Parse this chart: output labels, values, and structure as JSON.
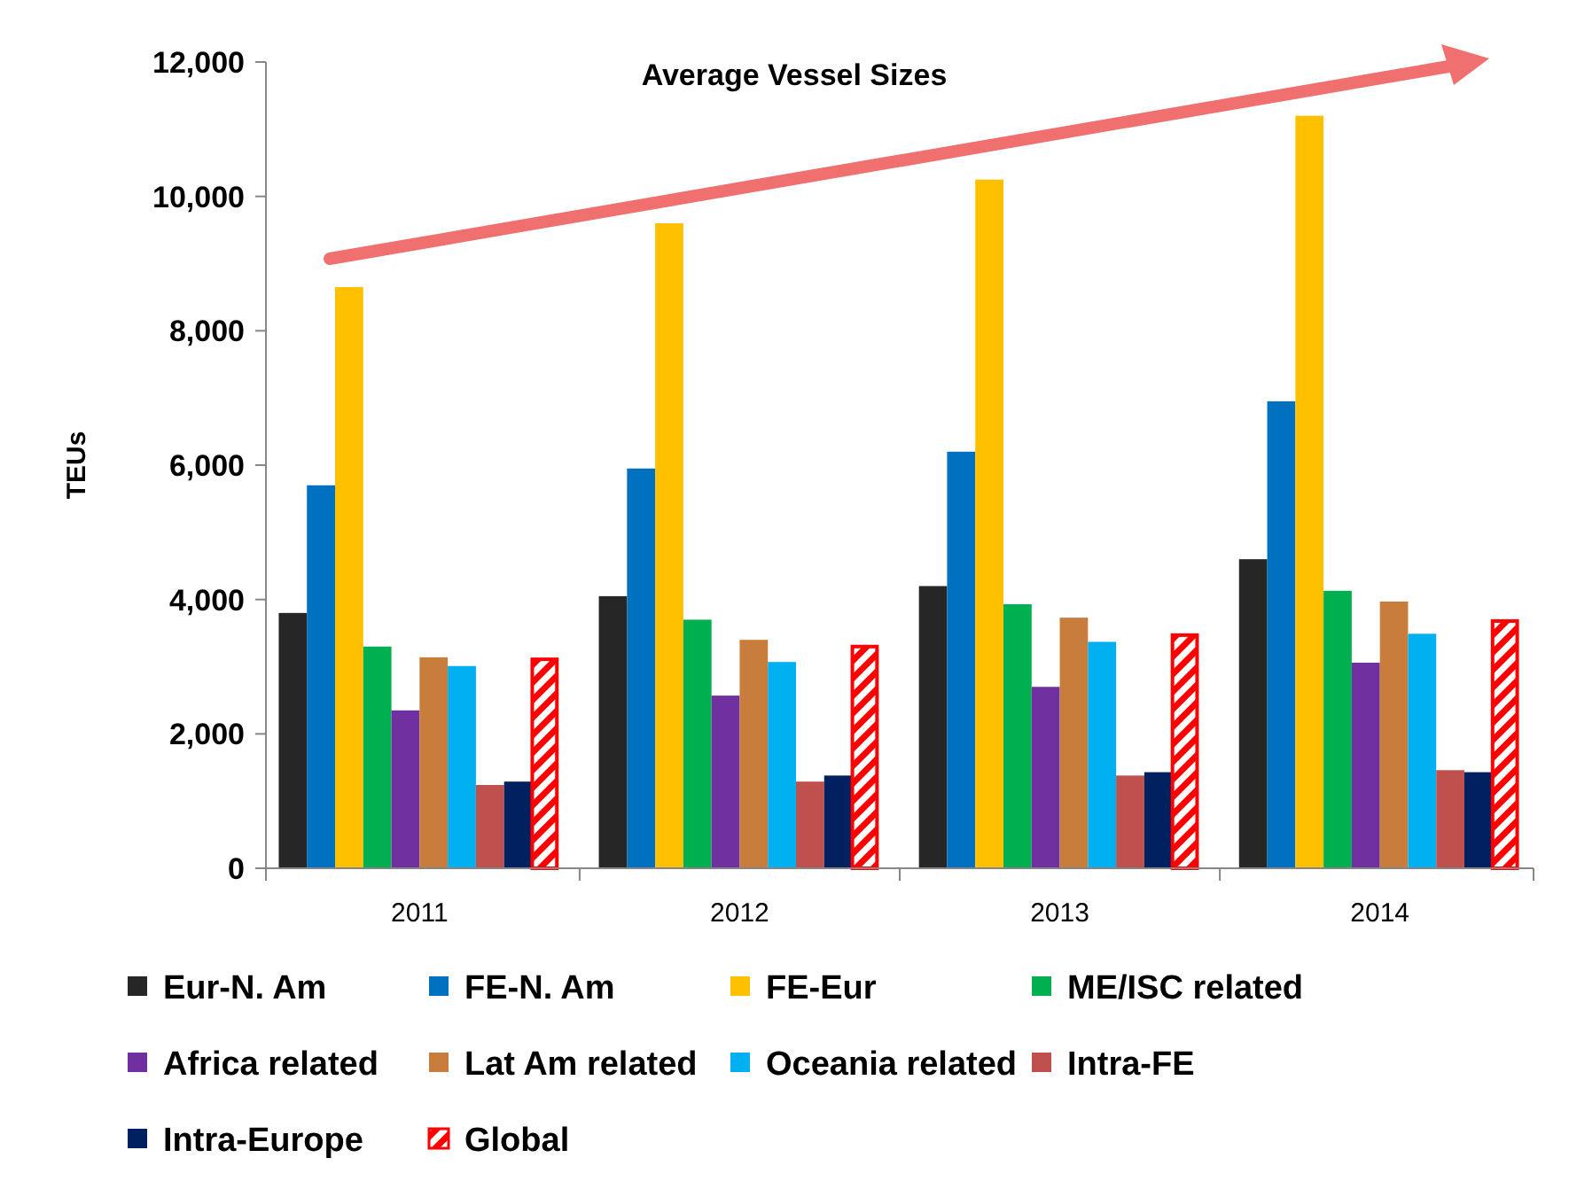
{
  "chart_data": {
    "type": "bar",
    "title": "Average Vessel Sizes",
    "ylabel": "TEUs",
    "categories": [
      "2011",
      "2012",
      "2013",
      "2014"
    ],
    "ylim": [
      0,
      12000
    ],
    "yticks": [
      {
        "value": 0,
        "label": "0"
      },
      {
        "value": 2000,
        "label": "2,000"
      },
      {
        "value": 4000,
        "label": "4,000"
      },
      {
        "value": 6000,
        "label": "6,000"
      },
      {
        "value": 8000,
        "label": "8,000"
      },
      {
        "value": 10000,
        "label": "10,000"
      },
      {
        "value": 12000,
        "label": "12,000"
      }
    ],
    "legend": "bottom",
    "grid": false,
    "series": [
      {
        "name": "Eur-N. Am",
        "color": "#262626",
        "values": [
          3800,
          4050,
          4200,
          4600
        ]
      },
      {
        "name": "FE-N. Am",
        "color": "#0070c0",
        "values": [
          5700,
          5950,
          6200,
          6950
        ]
      },
      {
        "name": "FE-Eur",
        "color": "#ffc000",
        "values": [
          8650,
          9600,
          10250,
          11200
        ]
      },
      {
        "name": "ME/ISC related",
        "color": "#00b050",
        "values": [
          3300,
          3700,
          3930,
          4130
        ]
      },
      {
        "name": "Africa related",
        "color": "#7030a0",
        "values": [
          2350,
          2570,
          2700,
          3060
        ]
      },
      {
        "name": "Lat Am related",
        "color": "#c87d3c",
        "values": [
          3140,
          3400,
          3730,
          3970
        ]
      },
      {
        "name": "Oceania related",
        "color": "#00b0f0",
        "values": [
          3010,
          3070,
          3370,
          3490
        ]
      },
      {
        "name": "Intra-FE",
        "color": "#c0504d",
        "values": [
          1240,
          1290,
          1380,
          1460
        ]
      },
      {
        "name": "Intra-Europe",
        "color": "#002060",
        "values": [
          1290,
          1380,
          1430,
          1430
        ]
      },
      {
        "name": "Global",
        "color": "#ff0000",
        "values": [
          3110,
          3300,
          3470,
          3680
        ]
      }
    ]
  }
}
